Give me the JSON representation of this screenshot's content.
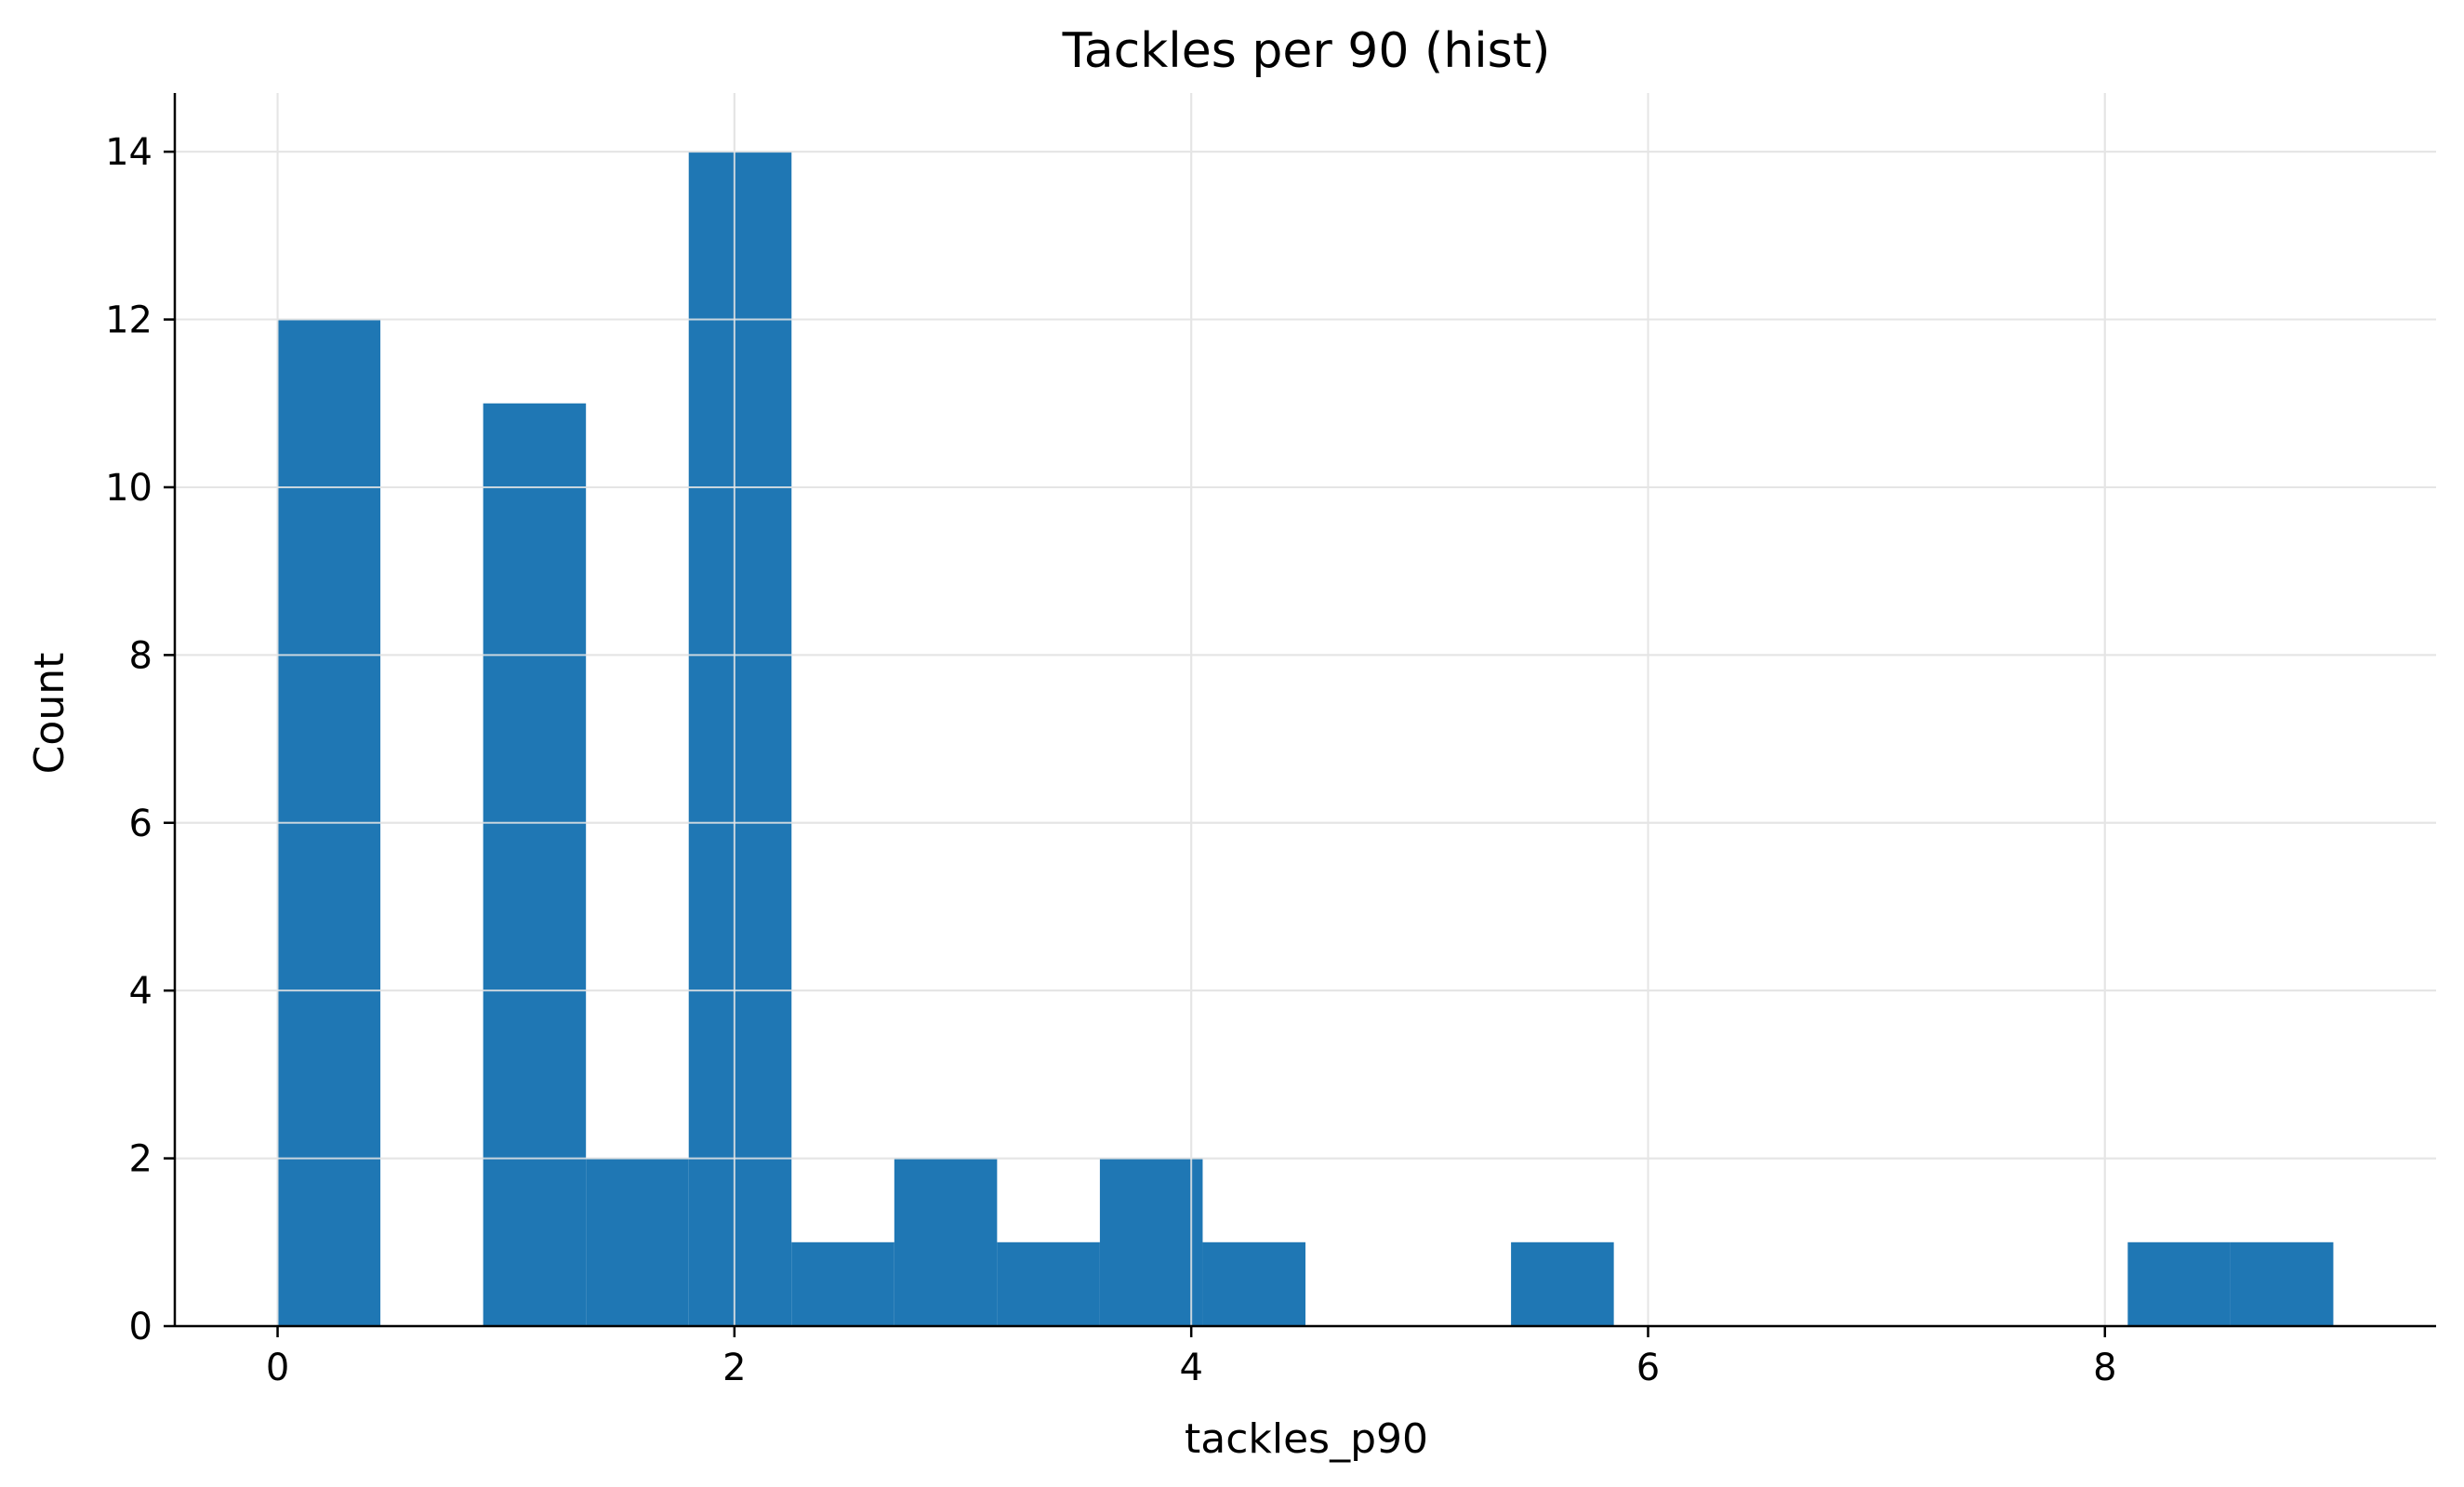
{
  "chart_data": {
    "type": "bar",
    "subtype": "histogram",
    "title": "Tackles per 90 (hist)",
    "xlabel": "tackles_p90",
    "ylabel": "Count",
    "bins": [
      {
        "x0": 0.0,
        "x1": 0.45,
        "count": 12
      },
      {
        "x0": 0.45,
        "x1": 0.9,
        "count": 0
      },
      {
        "x0": 0.9,
        "x1": 1.35,
        "count": 11
      },
      {
        "x0": 1.35,
        "x1": 1.8,
        "count": 2
      },
      {
        "x0": 1.8,
        "x1": 2.25,
        "count": 14
      },
      {
        "x0": 2.25,
        "x1": 2.7,
        "count": 1
      },
      {
        "x0": 2.7,
        "x1": 3.15,
        "count": 2
      },
      {
        "x0": 3.15,
        "x1": 3.6,
        "count": 1
      },
      {
        "x0": 3.6,
        "x1": 4.05,
        "count": 2
      },
      {
        "x0": 4.05,
        "x1": 4.5,
        "count": 1
      },
      {
        "x0": 4.5,
        "x1": 4.95,
        "count": 0
      },
      {
        "x0": 4.95,
        "x1": 5.4,
        "count": 0
      },
      {
        "x0": 5.4,
        "x1": 5.85,
        "count": 1
      },
      {
        "x0": 5.85,
        "x1": 6.3,
        "count": 0
      },
      {
        "x0": 6.3,
        "x1": 6.75,
        "count": 0
      },
      {
        "x0": 6.75,
        "x1": 7.2,
        "count": 0
      },
      {
        "x0": 7.2,
        "x1": 7.65,
        "count": 0
      },
      {
        "x0": 7.65,
        "x1": 8.1,
        "count": 0
      },
      {
        "x0": 8.1,
        "x1": 8.55,
        "count": 1
      },
      {
        "x0": 8.55,
        "x1": 9.0,
        "count": 1
      }
    ],
    "xlim": [
      -0.45,
      9.45
    ],
    "ylim": [
      0,
      14.7
    ],
    "xticks": [
      0,
      2,
      4,
      6,
      8
    ],
    "yticks": [
      0,
      2,
      4,
      6,
      8,
      10,
      12,
      14
    ],
    "grid": true,
    "bar_color": "#1f77b4",
    "grid_color": "#e5e5e5"
  }
}
